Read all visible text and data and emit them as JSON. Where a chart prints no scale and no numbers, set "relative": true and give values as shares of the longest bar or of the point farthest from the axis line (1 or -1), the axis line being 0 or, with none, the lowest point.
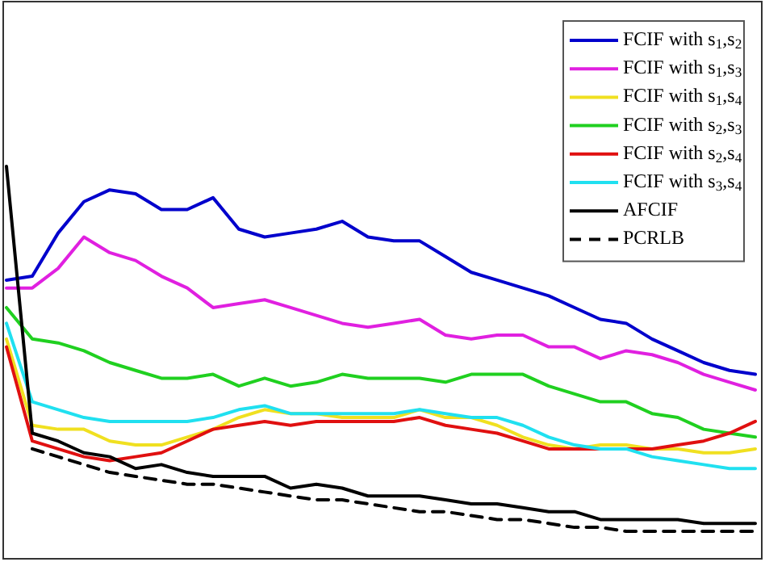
{
  "chart_data": {
    "type": "line",
    "relative": true,
    "legend": "top right",
    "categories": [
      null,
      null,
      null,
      null,
      null,
      null,
      null,
      null,
      null,
      null,
      null,
      null,
      null,
      null,
      null,
      null,
      null,
      null,
      null,
      null,
      null,
      null,
      null,
      null,
      null,
      null,
      null,
      null,
      null,
      null
    ],
    "series": [
      {
        "name": "FCIF with s$_{1}$,s$_{2}$",
        "color": "#0000cc",
        "values": [
          0.71,
          0.72,
          0.83,
          0.91,
          0.94,
          0.93,
          0.89,
          0.89,
          0.92,
          0.84,
          0.82,
          0.83,
          0.84,
          0.86,
          0.82,
          0.81,
          0.81,
          0.77,
          0.73,
          0.71,
          0.69,
          0.67,
          0.64,
          0.61,
          0.6,
          0.56,
          0.53,
          0.5,
          0.48,
          0.47
        ]
      },
      {
        "name": "FCIF with s$_{1}$,s$_{3}$",
        "color": "#e020e0",
        "values": [
          0.69,
          0.69,
          0.74,
          0.82,
          0.78,
          0.76,
          0.72,
          0.69,
          0.64,
          0.65,
          0.66,
          0.64,
          0.62,
          0.6,
          0.59,
          0.6,
          0.61,
          0.57,
          0.56,
          0.57,
          0.57,
          0.54,
          0.54,
          0.51,
          0.53,
          0.52,
          0.5,
          0.47,
          0.45,
          0.43
        ]
      },
      {
        "name": "FCIF with s$_{1}$,s$_{4}$",
        "color": "#f0e020",
        "values": [
          0.56,
          0.34,
          0.33,
          0.33,
          0.3,
          0.29,
          0.29,
          0.31,
          0.33,
          0.36,
          0.38,
          0.37,
          0.37,
          0.36,
          0.36,
          0.36,
          0.38,
          0.36,
          0.36,
          0.34,
          0.31,
          0.29,
          0.28,
          0.29,
          0.29,
          0.28,
          0.28,
          0.27,
          0.27,
          0.28
        ]
      },
      {
        "name": "FCIF with s$_{2}$,s$_{3}$",
        "color": "#20d020",
        "values": [
          0.64,
          0.56,
          0.55,
          0.53,
          0.5,
          0.48,
          0.46,
          0.46,
          0.47,
          0.44,
          0.46,
          0.44,
          0.45,
          0.47,
          0.46,
          0.46,
          0.46,
          0.45,
          0.47,
          0.47,
          0.47,
          0.44,
          0.42,
          0.4,
          0.4,
          0.37,
          0.36,
          0.33,
          0.32,
          0.31
        ]
      },
      {
        "name": "FCIF with s$_{2}$,s$_{4}$",
        "color": "#e01010",
        "values": [
          0.54,
          0.3,
          0.28,
          0.26,
          0.25,
          0.26,
          0.27,
          0.3,
          0.33,
          0.34,
          0.35,
          0.34,
          0.35,
          0.35,
          0.35,
          0.35,
          0.36,
          0.34,
          0.33,
          0.32,
          0.3,
          0.28,
          0.28,
          0.28,
          0.28,
          0.28,
          0.29,
          0.3,
          0.32,
          0.35
        ]
      },
      {
        "name": "FCIF with s$_{3}$,s$_{4}$",
        "color": "#20e0f0",
        "values": [
          0.6,
          0.4,
          0.38,
          0.36,
          0.35,
          0.35,
          0.35,
          0.35,
          0.36,
          0.38,
          0.39,
          0.37,
          0.37,
          0.37,
          0.37,
          0.37,
          0.38,
          0.37,
          0.36,
          0.36,
          0.34,
          0.31,
          0.29,
          0.28,
          0.28,
          0.26,
          0.25,
          0.24,
          0.23,
          0.23
        ]
      },
      {
        "name": "AFCIF",
        "color": "#000000",
        "values": [
          1.0,
          0.32,
          0.3,
          0.27,
          0.26,
          0.23,
          0.24,
          0.22,
          0.21,
          0.21,
          0.21,
          0.18,
          0.19,
          0.18,
          0.16,
          0.16,
          0.16,
          0.15,
          0.14,
          0.14,
          0.13,
          0.12,
          0.12,
          0.1,
          0.1,
          0.1,
          0.1,
          0.09,
          0.09,
          0.09
        ]
      },
      {
        "name": "PCRLB",
        "color": "#000000",
        "line_style": "dashed",
        "values": [
          null,
          0.28,
          0.26,
          0.24,
          0.22,
          0.21,
          0.2,
          0.19,
          0.19,
          0.18,
          0.17,
          0.16,
          0.15,
          0.15,
          0.14,
          0.13,
          0.12,
          0.12,
          0.11,
          0.1,
          0.1,
          0.09,
          0.08,
          0.08,
          0.07,
          0.07,
          0.07,
          0.07,
          0.07,
          0.07
        ]
      }
    ]
  }
}
